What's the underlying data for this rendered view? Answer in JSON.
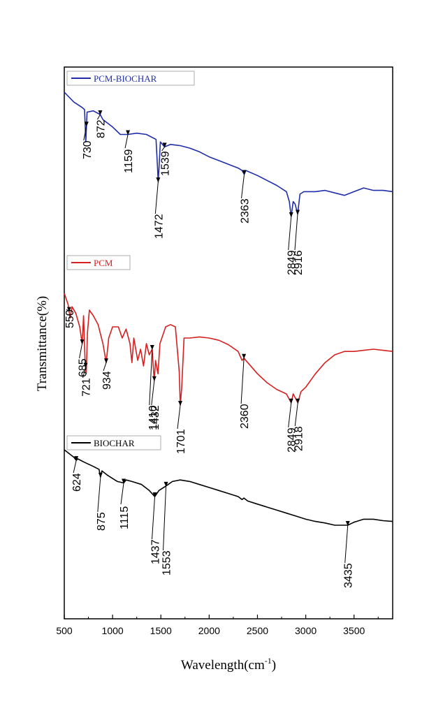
{
  "chart_data": {
    "type": "line",
    "title": "",
    "xlabel": "Wavelength(cm",
    "xlabel_sup": "-1",
    "xlabel_close": ")",
    "ylabel": "Transmittance(%)",
    "xlim": [
      500,
      3900
    ],
    "xticks": [
      500,
      1000,
      1500,
      2000,
      2500,
      3000,
      3500
    ],
    "y_ticks_shown": false,
    "grid": false,
    "legend_placement": "per-series, top-left of each trace",
    "series": [
      {
        "name": "PCM-BIOCHAR",
        "color": "#1f2ea8",
        "points": [
          [
            500,
            0.0
          ],
          [
            600,
            0.08
          ],
          [
            680,
            0.12
          ],
          [
            710,
            0.14
          ],
          [
            723,
            0.4
          ],
          [
            736,
            0.16
          ],
          [
            800,
            0.15
          ],
          [
            872,
            0.18
          ],
          [
            900,
            0.22
          ],
          [
            1000,
            0.28
          ],
          [
            1080,
            0.34
          ],
          [
            1159,
            0.34
          ],
          [
            1250,
            0.33
          ],
          [
            1350,
            0.34
          ],
          [
            1450,
            0.38
          ],
          [
            1465,
            0.6
          ],
          [
            1472,
            0.72
          ],
          [
            1480,
            0.62
          ],
          [
            1495,
            0.4
          ],
          [
            1539,
            0.44
          ],
          [
            1600,
            0.42
          ],
          [
            1700,
            0.43
          ],
          [
            1800,
            0.45
          ],
          [
            1900,
            0.48
          ],
          [
            2000,
            0.52
          ],
          [
            2100,
            0.55
          ],
          [
            2200,
            0.58
          ],
          [
            2300,
            0.61
          ],
          [
            2340,
            0.63
          ],
          [
            2363,
            0.66
          ],
          [
            2380,
            0.63
          ],
          [
            2500,
            0.67
          ],
          [
            2600,
            0.71
          ],
          [
            2700,
            0.75
          ],
          [
            2800,
            0.8
          ],
          [
            2830,
            0.88
          ],
          [
            2849,
            1.0
          ],
          [
            2870,
            0.88
          ],
          [
            2890,
            0.9
          ],
          [
            2916,
            0.98
          ],
          [
            2940,
            0.82
          ],
          [
            2980,
            0.8
          ],
          [
            3100,
            0.8
          ],
          [
            3200,
            0.79
          ],
          [
            3300,
            0.81
          ],
          [
            3400,
            0.83
          ],
          [
            3500,
            0.8
          ],
          [
            3600,
            0.77
          ],
          [
            3700,
            0.79
          ],
          [
            3800,
            0.79
          ],
          [
            3900,
            0.8
          ]
        ],
        "annotations": [
          {
            "label": "730",
            "x": 730
          },
          {
            "label": "872",
            "x": 872
          },
          {
            "label": "1159",
            "x": 1159
          },
          {
            "label": "1472",
            "x": 1472
          },
          {
            "label": "1539",
            "x": 1539
          },
          {
            "label": "2363",
            "x": 2363
          },
          {
            "label": "2849",
            "x": 2849
          },
          {
            "label": "2916",
            "x": 2916
          }
        ]
      },
      {
        "name": "PCM",
        "color": "#d42020",
        "points": [
          [
            500,
            0.0
          ],
          [
            540,
            0.1
          ],
          [
            560,
            0.22
          ],
          [
            580,
            0.12
          ],
          [
            620,
            0.18
          ],
          [
            660,
            0.3
          ],
          [
            685,
            0.45
          ],
          [
            700,
            0.2
          ],
          [
            715,
            0.6
          ],
          [
            727,
            0.72
          ],
          [
            740,
            0.35
          ],
          [
            760,
            0.15
          ],
          [
            800,
            0.2
          ],
          [
            850,
            0.28
          ],
          [
            900,
            0.45
          ],
          [
            934,
            0.62
          ],
          [
            960,
            0.4
          ],
          [
            1000,
            0.3
          ],
          [
            1060,
            0.3
          ],
          [
            1100,
            0.4
          ],
          [
            1140,
            0.32
          ],
          [
            1180,
            0.45
          ],
          [
            1200,
            0.62
          ],
          [
            1220,
            0.4
          ],
          [
            1260,
            0.6
          ],
          [
            1290,
            0.5
          ],
          [
            1320,
            0.65
          ],
          [
            1350,
            0.45
          ],
          [
            1380,
            0.55
          ],
          [
            1410,
            0.5
          ],
          [
            1420,
            0.65
          ],
          [
            1432,
            0.78
          ],
          [
            1445,
            0.6
          ],
          [
            1470,
            0.72
          ],
          [
            1490,
            0.45
          ],
          [
            1550,
            0.3
          ],
          [
            1600,
            0.28
          ],
          [
            1650,
            0.3
          ],
          [
            1690,
            0.7
          ],
          [
            1701,
            1.0
          ],
          [
            1715,
            0.85
          ],
          [
            1740,
            0.4
          ],
          [
            1800,
            0.4
          ],
          [
            1900,
            0.39
          ],
          [
            2000,
            0.4
          ],
          [
            2100,
            0.42
          ],
          [
            2200,
            0.46
          ],
          [
            2300,
            0.52
          ],
          [
            2340,
            0.6
          ],
          [
            2360,
            0.58
          ],
          [
            2400,
            0.62
          ],
          [
            2500,
            0.72
          ],
          [
            2600,
            0.8
          ],
          [
            2700,
            0.86
          ],
          [
            2800,
            0.9
          ],
          [
            2849,
            0.98
          ],
          [
            2870,
            0.9
          ],
          [
            2918,
            0.98
          ],
          [
            2950,
            0.88
          ],
          [
            3000,
            0.84
          ],
          [
            3100,
            0.72
          ],
          [
            3200,
            0.62
          ],
          [
            3300,
            0.55
          ],
          [
            3400,
            0.52
          ],
          [
            3500,
            0.52
          ],
          [
            3600,
            0.51
          ],
          [
            3700,
            0.5
          ],
          [
            3800,
            0.51
          ],
          [
            3900,
            0.52
          ]
        ],
        "annotations": [
          {
            "label": "550",
            "x": 550
          },
          {
            "label": "685",
            "x": 685
          },
          {
            "label": "721",
            "x": 721
          },
          {
            "label": "934",
            "x": 934
          },
          {
            "label": "1410",
            "x": 1410
          },
          {
            "label": "1432",
            "x": 1432
          },
          {
            "label": "1701",
            "x": 1701
          },
          {
            "label": "2360",
            "x": 2360
          },
          {
            "label": "2849",
            "x": 2849
          },
          {
            "label": "2918",
            "x": 2918
          }
        ]
      },
      {
        "name": "BIOCHAR",
        "color": "#000000",
        "points": [
          [
            500,
            0.0
          ],
          [
            560,
            0.06
          ],
          [
            600,
            0.1
          ],
          [
            624,
            0.14
          ],
          [
            640,
            0.12
          ],
          [
            700,
            0.16
          ],
          [
            800,
            0.22
          ],
          [
            860,
            0.26
          ],
          [
            875,
            0.36
          ],
          [
            890,
            0.28
          ],
          [
            950,
            0.34
          ],
          [
            1050,
            0.42
          ],
          [
            1115,
            0.44
          ],
          [
            1140,
            0.4
          ],
          [
            1200,
            0.42
          ],
          [
            1300,
            0.46
          ],
          [
            1380,
            0.54
          ],
          [
            1437,
            0.62
          ],
          [
            1480,
            0.54
          ],
          [
            1553,
            0.48
          ],
          [
            1620,
            0.42
          ],
          [
            1700,
            0.4
          ],
          [
            1800,
            0.42
          ],
          [
            1900,
            0.46
          ],
          [
            2000,
            0.5
          ],
          [
            2100,
            0.54
          ],
          [
            2200,
            0.58
          ],
          [
            2300,
            0.62
          ],
          [
            2340,
            0.66
          ],
          [
            2360,
            0.64
          ],
          [
            2400,
            0.68
          ],
          [
            2500,
            0.72
          ],
          [
            2600,
            0.76
          ],
          [
            2700,
            0.8
          ],
          [
            2800,
            0.84
          ],
          [
            2900,
            0.88
          ],
          [
            3000,
            0.92
          ],
          [
            3100,
            0.95
          ],
          [
            3200,
            0.97
          ],
          [
            3300,
            1.0
          ],
          [
            3435,
            1.0
          ],
          [
            3500,
            0.96
          ],
          [
            3600,
            0.92
          ],
          [
            3700,
            0.92
          ],
          [
            3800,
            0.94
          ],
          [
            3900,
            0.95
          ]
        ],
        "annotations": [
          {
            "label": "624",
            "x": 624
          },
          {
            "label": "875",
            "x": 875
          },
          {
            "label": "1115",
            "x": 1115
          },
          {
            "label": "1437",
            "x": 1437
          },
          {
            "label": "1553",
            "x": 1553
          },
          {
            "label": "3435",
            "x": 3435
          }
        ]
      }
    ]
  }
}
